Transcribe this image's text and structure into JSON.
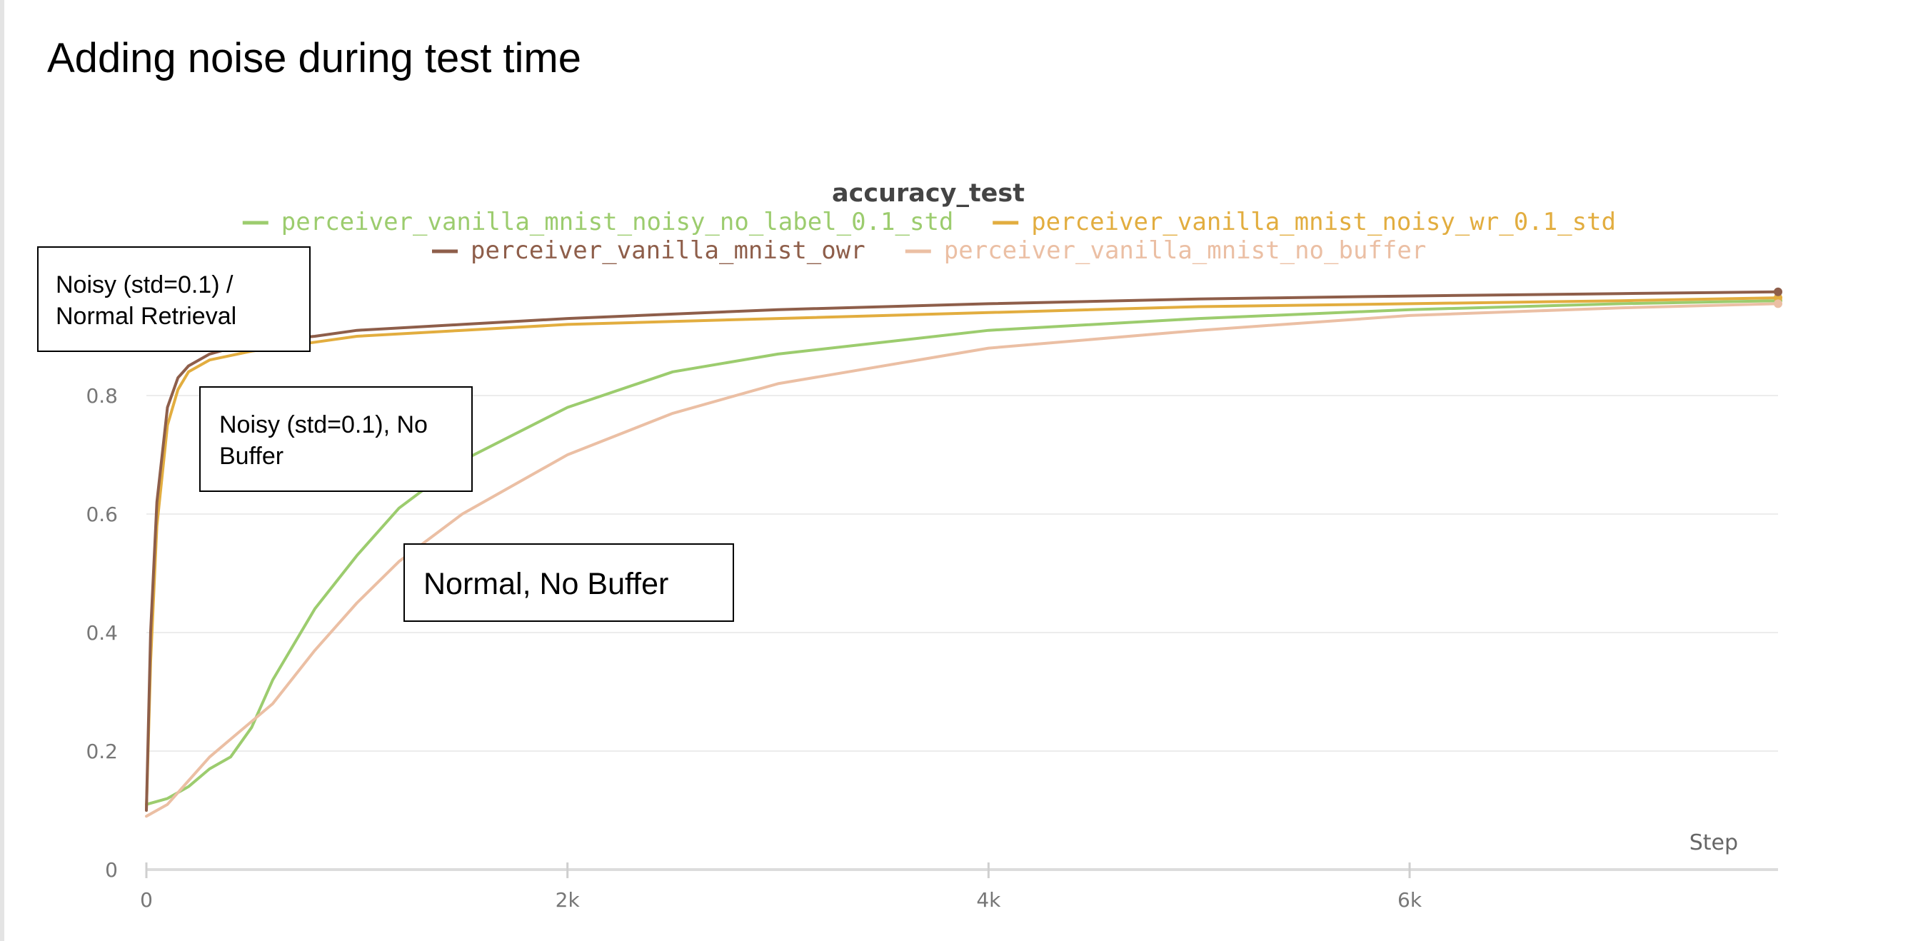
{
  "slide": {
    "title": "Adding noise during test time"
  },
  "annotations": [
    {
      "lines": [
        "Noisy (std=0.1) /",
        "Normal Retrieval"
      ]
    },
    {
      "lines": [
        "Noisy (std=0.1), No",
        "Buffer"
      ]
    },
    {
      "lines": [
        "Normal, No Buffer"
      ]
    }
  ],
  "chart_data": {
    "type": "line",
    "title": "accuracy_test",
    "xlabel": "Step",
    "ylabel": "",
    "xlim": [
      0,
      7750
    ],
    "ylim": [
      0,
      1.0
    ],
    "x_ticks": [
      0,
      2000,
      4000,
      6000
    ],
    "x_tick_labels": [
      "0",
      "2k",
      "4k",
      "6k"
    ],
    "y_ticks": [
      0,
      0.2,
      0.4,
      0.6,
      0.8
    ],
    "y_tick_labels": [
      "0",
      "0.2",
      "0.4",
      "0.6",
      "0.8"
    ],
    "grid": true,
    "legend_position": "top",
    "series": [
      {
        "name": "perceiver_vanilla_mnist_noisy_no_label_0.1_std",
        "color": "#9ccc6e",
        "x": [
          0,
          100,
          200,
          300,
          400,
          500,
          600,
          800,
          1000,
          1200,
          1500,
          2000,
          2500,
          3000,
          4000,
          5000,
          6000,
          7000,
          7750
        ],
        "y": [
          0.11,
          0.12,
          0.14,
          0.17,
          0.19,
          0.24,
          0.32,
          0.44,
          0.53,
          0.61,
          0.69,
          0.78,
          0.84,
          0.87,
          0.91,
          0.93,
          0.945,
          0.955,
          0.96
        ]
      },
      {
        "name": "perceiver_vanilla_mnist_noisy_wr_0.1_std",
        "color": "#e2ad3f",
        "x": [
          0,
          20,
          50,
          100,
          150,
          200,
          300,
          500,
          800,
          1000,
          1500,
          2000,
          3000,
          4000,
          5000,
          6000,
          7000,
          7750
        ],
        "y": [
          0.1,
          0.35,
          0.58,
          0.75,
          0.81,
          0.84,
          0.86,
          0.875,
          0.89,
          0.9,
          0.91,
          0.92,
          0.93,
          0.94,
          0.95,
          0.955,
          0.96,
          0.965
        ]
      },
      {
        "name": "perceiver_vanilla_mnist_owr",
        "color": "#8e5e4a",
        "x": [
          0,
          20,
          50,
          100,
          150,
          200,
          300,
          500,
          800,
          1000,
          1500,
          2000,
          3000,
          4000,
          5000,
          6000,
          7000,
          7750
        ],
        "y": [
          0.1,
          0.4,
          0.62,
          0.78,
          0.83,
          0.85,
          0.87,
          0.89,
          0.9,
          0.91,
          0.92,
          0.93,
          0.945,
          0.955,
          0.963,
          0.968,
          0.972,
          0.975
        ]
      },
      {
        "name": "perceiver_vanilla_mnist_no_buffer",
        "color": "#ebbfa4",
        "x": [
          0,
          100,
          200,
          300,
          400,
          500,
          600,
          800,
          1000,
          1200,
          1500,
          2000,
          2500,
          3000,
          4000,
          5000,
          6000,
          7000,
          7750
        ],
        "y": [
          0.09,
          0.11,
          0.15,
          0.19,
          0.22,
          0.25,
          0.28,
          0.37,
          0.45,
          0.52,
          0.6,
          0.7,
          0.77,
          0.82,
          0.88,
          0.91,
          0.935,
          0.948,
          0.955
        ]
      }
    ]
  }
}
